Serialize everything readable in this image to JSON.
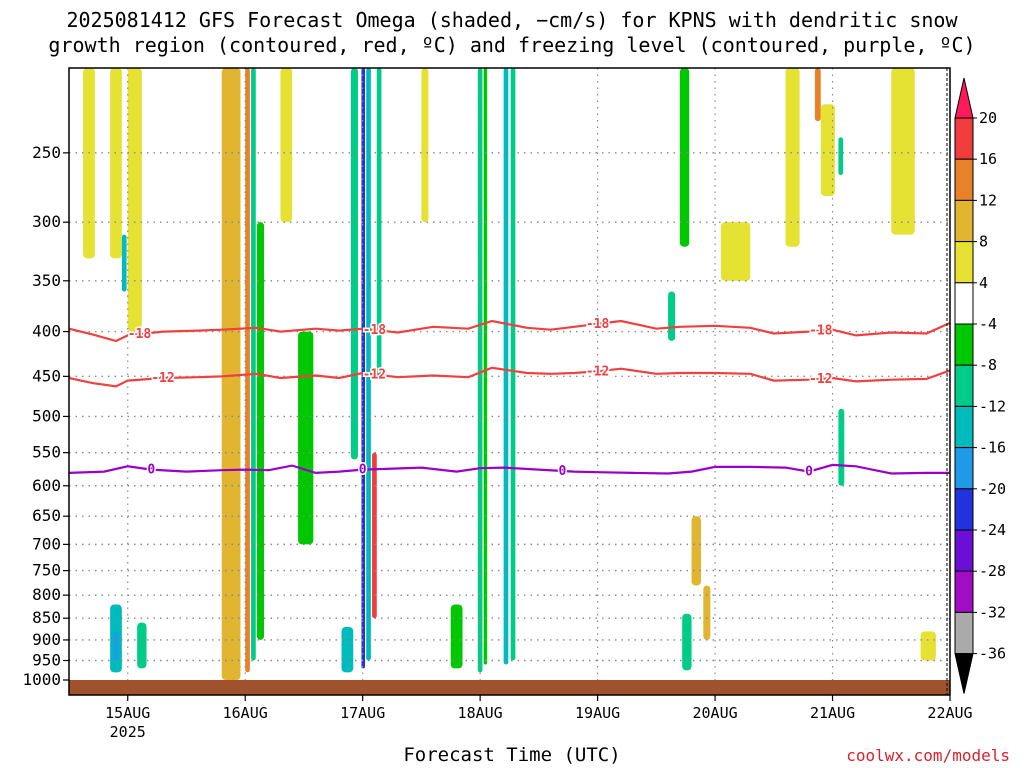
{
  "title": {
    "line1": "2025081412 GFS Forecast Omega (shaded, −cm/s) for KPNS with dendritic snow",
    "line2": "growth region (contoured, red, ºC) and freezing level (contoured, purple, ºC)"
  },
  "xlabel": "Forecast Time (UTC)",
  "credit": "coolwx.com/models",
  "colors": {
    "dgz_contour": "#f04040",
    "freezing_contour": "#9b00c8",
    "ground": "#a0522d",
    "grid": "#888888"
  },
  "chart_data": {
    "type": "heatmap",
    "title": "2025081412 GFS Forecast Omega (shaded, −cm/s) for KPNS with dendritic snow growth region (contoured, red, ºC) and freezing level (contoured, purple, ºC)",
    "xlabel": "Forecast Time (UTC)",
    "ylabel": "",
    "x_ticks": [
      "15AUG",
      "16AUG",
      "17AUG",
      "18AUG",
      "19AUG",
      "20AUG",
      "21AUG",
      "22AUG"
    ],
    "x_tick_sublabel": "2025",
    "x_range_days": [
      14.5,
      22
    ],
    "y_ticks": [
      250,
      300,
      350,
      400,
      450,
      500,
      550,
      600,
      650,
      700,
      750,
      800,
      850,
      900,
      950,
      1000
    ],
    "y_range_hpa": [
      200,
      1000
    ],
    "y_scale": "log-pressure, inverted",
    "grid": true,
    "colorbar": {
      "labels": [
        "20",
        "16",
        "12",
        "8",
        "4",
        "-4",
        "-8",
        "-12",
        "-16",
        "-20",
        "-24",
        "-28",
        "-32",
        "-36"
      ],
      "colors": [
        "#ff1a5c",
        "#f03c3c",
        "#e8822a",
        "#e2b531",
        "#e6e234",
        "#ffffff",
        "#00c800",
        "#00cc8a",
        "#00bbbb",
        "#1f9ae8",
        "#2233dd",
        "#6a0fd8",
        "#a10dc4",
        "#aaaaaa",
        "#000000"
      ]
    },
    "contours": [
      {
        "name": "-18",
        "color": "dgz",
        "x": [
          14.5,
          14.7,
          14.9,
          15.0,
          15.3,
          15.6,
          15.8,
          16.1,
          16.3,
          16.6,
          16.8,
          17.0,
          17.3,
          17.6,
          17.9,
          18.1,
          18.4,
          18.6,
          18.8,
          19.0,
          19.2,
          19.5,
          19.7,
          20.0,
          20.3,
          20.5,
          20.8,
          21.0,
          21.2,
          21.5,
          21.8,
          22.0
        ],
        "p": [
          397,
          403,
          410,
          404,
          400,
          399,
          398,
          396,
          400,
          397,
          399,
          397,
          401,
          395,
          397,
          389,
          396,
          398,
          395,
          392,
          389,
          397,
          395,
          394,
          396,
          402,
          400,
          398,
          404,
          401,
          402,
          391
        ],
        "labels_at": [
          15.1,
          17.1,
          19.0,
          20.9
        ]
      },
      {
        "name": "-12",
        "color": "dgz",
        "x": [
          14.5,
          14.7,
          14.9,
          15.0,
          15.3,
          15.6,
          15.8,
          16.1,
          16.3,
          16.6,
          16.8,
          17.0,
          17.3,
          17.6,
          17.9,
          18.1,
          18.4,
          18.6,
          18.8,
          19.0,
          19.2,
          19.5,
          19.7,
          20.0,
          20.3,
          20.5,
          20.8,
          21.0,
          21.2,
          21.5,
          21.8,
          22.0
        ],
        "p": [
          452,
          458,
          462,
          455,
          452,
          451,
          450,
          447,
          452,
          449,
          452,
          446,
          451,
          449,
          451,
          440,
          446,
          447,
          446,
          444,
          441,
          447,
          446,
          446,
          447,
          455,
          454,
          452,
          456,
          454,
          453,
          443
        ],
        "labels_at": [
          15.3,
          17.1,
          19.0,
          20.9
        ]
      },
      {
        "name": "0",
        "color": "freezing",
        "x": [
          14.5,
          14.8,
          15.0,
          15.2,
          15.5,
          15.8,
          16.0,
          16.2,
          16.4,
          16.6,
          16.8,
          17.0,
          17.2,
          17.5,
          17.8,
          18.0,
          18.2,
          18.5,
          18.8,
          19.0,
          19.3,
          19.6,
          19.8,
          20.0,
          20.3,
          20.6,
          20.8,
          21.0,
          21.2,
          21.5,
          21.8,
          22.0
        ],
        "p": [
          580,
          578,
          570,
          575,
          578,
          576,
          575,
          576,
          569,
          580,
          578,
          575,
          574,
          572,
          578,
          573,
          572,
          575,
          578,
          579,
          580,
          581,
          578,
          571,
          571,
          572,
          578,
          568,
          570,
          581,
          580,
          580
        ],
        "labels_at": [
          15.2,
          17.0,
          18.7,
          20.8
        ]
      }
    ],
    "omega_patches": [
      {
        "x": [
          14.62,
          14.72
        ],
        "p": [
          200,
          330
        ],
        "value": 6
      },
      {
        "x": [
          14.85,
          14.95
        ],
        "p": [
          200,
          330
        ],
        "value": 4
      },
      {
        "x": [
          15.0,
          15.12
        ],
        "p": [
          200,
          400
        ],
        "value": 5
      },
      {
        "x": [
          14.95,
          14.99
        ],
        "p": [
          310,
          360
        ],
        "value": -12
      },
      {
        "x": [
          15.08,
          15.16
        ],
        "p": [
          860,
          970
        ],
        "value": -8
      },
      {
        "x": [
          14.85,
          14.95
        ],
        "p": [
          820,
          980
        ],
        "value": -12
      },
      {
        "x": [
          14.88,
          14.92
        ],
        "p": [
          880,
          950
        ],
        "value": -16
      },
      {
        "x": [
          15.8,
          15.96
        ],
        "p": [
          200,
          1000
        ],
        "value": 8
      },
      {
        "x": [
          16.0,
          16.04
        ],
        "p": [
          200,
          980
        ],
        "value": 14
      },
      {
        "x": [
          16.05,
          16.09
        ],
        "p": [
          200,
          950
        ],
        "value": -10
      },
      {
        "x": [
          16.1,
          16.16
        ],
        "p": [
          300,
          900
        ],
        "value": -6
      },
      {
        "x": [
          16.3,
          16.4
        ],
        "p": [
          200,
          300
        ],
        "value": 6
      },
      {
        "x": [
          16.45,
          16.58
        ],
        "p": [
          400,
          700
        ],
        "value": -6
      },
      {
        "x": [
          16.9,
          16.96
        ],
        "p": [
          200,
          560
        ],
        "value": -8
      },
      {
        "x": [
          16.99,
          17.02
        ],
        "p": [
          200,
          970
        ],
        "value": -22
      },
      {
        "x": [
          17.03,
          17.07
        ],
        "p": [
          200,
          950
        ],
        "value": -14
      },
      {
        "x": [
          17.08,
          17.12
        ],
        "p": [
          550,
          850
        ],
        "value": 16
      },
      {
        "x": [
          17.12,
          17.16
        ],
        "p": [
          200,
          450
        ],
        "value": -8
      },
      {
        "x": [
          16.82,
          16.92
        ],
        "p": [
          870,
          980
        ],
        "value": -14
      },
      {
        "x": [
          17.5,
          17.56
        ],
        "p": [
          200,
          300
        ],
        "value": 5
      },
      {
        "x": [
          17.75,
          17.85
        ],
        "p": [
          820,
          970
        ],
        "value": -6
      },
      {
        "x": [
          17.98,
          18.02
        ],
        "p": [
          200,
          980
        ],
        "value": -10
      },
      {
        "x": [
          18.03,
          18.06
        ],
        "p": [
          200,
          960
        ],
        "value": -6
      },
      {
        "x": [
          18.2,
          18.24
        ],
        "p": [
          200,
          960
        ],
        "value": -14
      },
      {
        "x": [
          18.26,
          18.3
        ],
        "p": [
          200,
          950
        ],
        "value": -8
      },
      {
        "x": [
          19.6,
          19.66
        ],
        "p": [
          360,
          410
        ],
        "value": -10
      },
      {
        "x": [
          19.7,
          19.78
        ],
        "p": [
          200,
          320
        ],
        "value": -6
      },
      {
        "x": [
          19.72,
          19.8
        ],
        "p": [
          840,
          975
        ],
        "value": -8
      },
      {
        "x": [
          19.8,
          19.88
        ],
        "p": [
          650,
          780
        ],
        "value": 10
      },
      {
        "x": [
          19.9,
          19.96
        ],
        "p": [
          780,
          900
        ],
        "value": 9
      },
      {
        "x": [
          20.05,
          20.3
        ],
        "p": [
          300,
          350
        ],
        "value": 5
      },
      {
        "x": [
          20.6,
          20.72
        ],
        "p": [
          200,
          320
        ],
        "value": 6
      },
      {
        "x": [
          20.85,
          20.9
        ],
        "p": [
          200,
          230
        ],
        "value": 12
      },
      {
        "x": [
          20.9,
          21.02
        ],
        "p": [
          220,
          280
        ],
        "value": 6
      },
      {
        "x": [
          21.05,
          21.1
        ],
        "p": [
          490,
          600
        ],
        "value": -8
      },
      {
        "x": [
          21.05,
          21.09
        ],
        "p": [
          240,
          265
        ],
        "value": -8
      },
      {
        "x": [
          21.5,
          21.7
        ],
        "p": [
          200,
          310
        ],
        "value": 5
      },
      {
        "x": [
          21.75,
          21.88
        ],
        "p": [
          880,
          950
        ],
        "value": 5
      }
    ]
  }
}
